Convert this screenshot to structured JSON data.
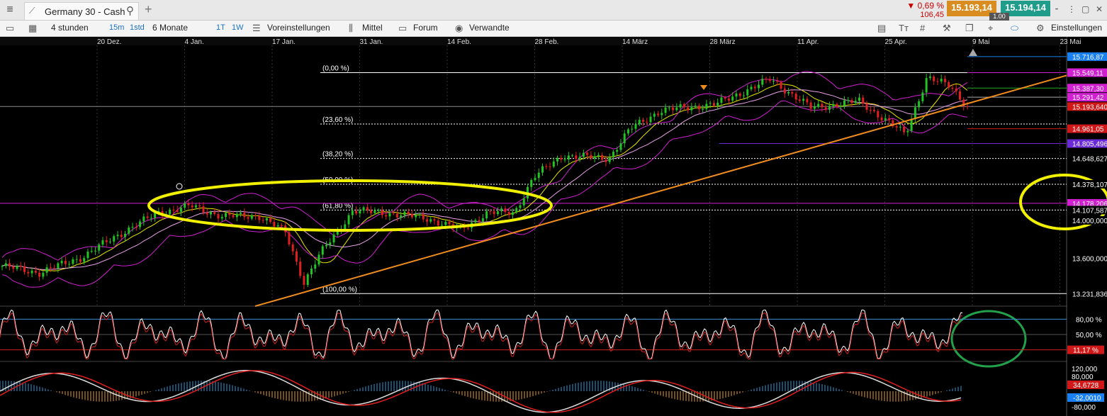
{
  "tab": {
    "title": "Germany 30 - Cash",
    "chart_icon": "chart-line-icon",
    "search_icon": "search-icon",
    "add_icon": "plus-icon"
  },
  "quote": {
    "change_pct": "▼ 0,69 %",
    "change_abs": "106,45",
    "bid": "15.193,14",
    "ask": "15.194,14",
    "spread": "1.00"
  },
  "toolbar": {
    "interval": "4 stunden",
    "btn_15m": "15m",
    "btn_1std": "1std",
    "range": "6 Monate",
    "btn_1t": "1T",
    "btn_1w": "1W",
    "presets": "Voreinstellungen",
    "average": "Mittel",
    "forum": "Forum",
    "related": "Verwandte",
    "settings": "Einstellungen"
  },
  "colors": {
    "up": "#22c322",
    "down": "#e02020",
    "bollinger": "#d020d0",
    "ma": "#e8e800",
    "trend": "#f08c1e",
    "annotation_yellow": "#f0f000",
    "annotation_green": "#22a04a"
  },
  "chart_data": {
    "type": "candlestick",
    "instrument": "Germany 30 - Cash",
    "x_ticks": [
      "20 Dez.",
      "4 Jan.",
      "17 Jan.",
      "31 Jan.",
      "14 Feb.",
      "28 Feb.",
      "14 März",
      "28 März",
      "11 Apr.",
      "25 Apr.",
      "9 Mai",
      "23 Mai"
    ],
    "y_ticks": [
      14000.0,
      13600.0
    ],
    "ylim": [
      13100,
      15850
    ],
    "fibonacci": [
      {
        "label": "(0,00 %)",
        "value": 15549.1
      },
      {
        "label": "(23,60 %)",
        "value": 15010.0
      },
      {
        "label": "(38,20 %)",
        "value": 14648.627
      },
      {
        "label": "(50,00 %)",
        "value": 14378.107
      },
      {
        "label": "(61,80 %)",
        "value": 14107.587
      },
      {
        "label": "(100,00 %)",
        "value": 13231.836
      }
    ],
    "right_labels": [
      {
        "text": "15.716,87",
        "value": 15716.87,
        "color": "#1a7ff0"
      },
      {
        "text": "15.549,11",
        "value": 15549.11,
        "color": "#d020d0"
      },
      {
        "text": "15.387,30",
        "value": 15387.3,
        "color": "#d020d0"
      },
      {
        "text": "15.291,42",
        "value": 15291.42,
        "color": "#d020d0"
      },
      {
        "text": "15.193,640",
        "value": 15193.64,
        "color": "#d01818"
      },
      {
        "text": "14.961,05",
        "value": 14961.05,
        "color": "#d01818"
      },
      {
        "text": "14.805,496",
        "value": 14805.496,
        "color": "#6a2ad8"
      },
      {
        "text": "14.648,627",
        "value": 14648.627,
        "color": "#000000"
      },
      {
        "text": "14.378,107",
        "value": 14378.107,
        "color": "#000000"
      },
      {
        "text": "14.178,206",
        "value": 14178.206,
        "color": "#d020d0"
      },
      {
        "text": "14.107,587",
        "value": 14107.587,
        "color": "#000000"
      },
      {
        "text": "14.000,000",
        "value": 14000.0,
        "color": "#000000"
      },
      {
        "text": "13.600,000",
        "value": 13600.0,
        "color": "#000000"
      },
      {
        "text": "13.231,836",
        "value": 13231.836,
        "color": "#000000"
      }
    ],
    "stochastic": {
      "levels": [
        "80,00 %",
        "50,00 %"
      ],
      "current": "11,17 %"
    },
    "macd": {
      "levels": [
        "120,000",
        "80,000",
        "-80,000"
      ],
      "value1": "34,6728",
      "value2": "-32,0010"
    }
  }
}
